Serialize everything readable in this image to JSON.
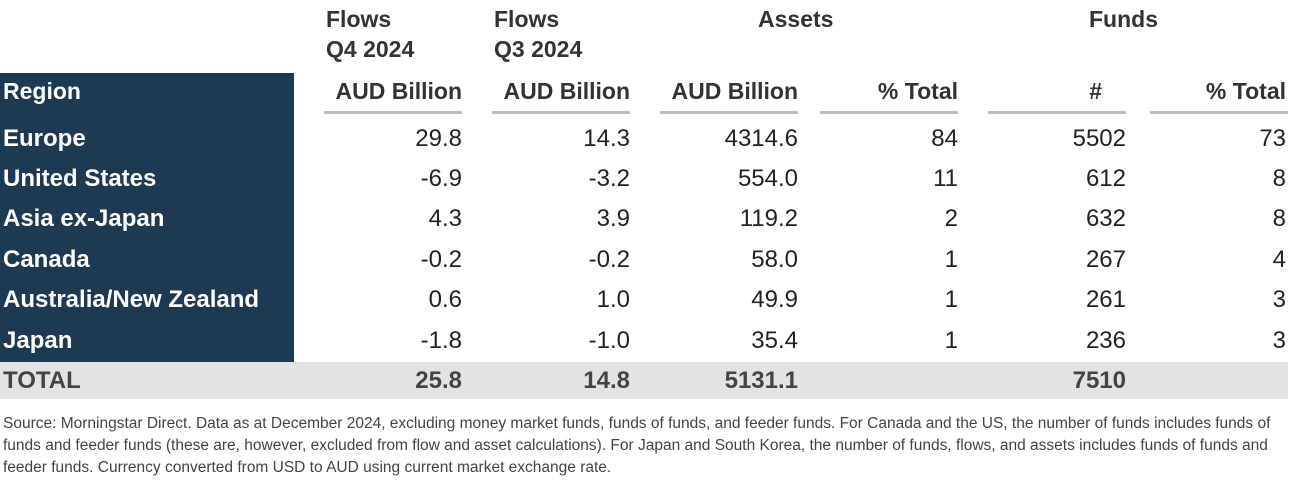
{
  "headers": {
    "flows_q4": [
      "Flows",
      "Q4 2024"
    ],
    "flows_q3": [
      "Flows",
      "Q3 2024"
    ],
    "assets": "Assets",
    "funds": "Funds"
  },
  "subheaders": {
    "region": "Region",
    "flows_q4_unit": "AUD Billion",
    "flows_q3_unit": "AUD Billion",
    "assets_unit": "AUD Billion",
    "assets_pct": "% Total",
    "funds_count": "#",
    "funds_pct": "% Total"
  },
  "rows": [
    {
      "region": "Europe",
      "flows_q4": "29.8",
      "flows_q3": "14.3",
      "assets": "4314.6",
      "assets_pct": "84",
      "funds": "5502",
      "funds_pct": "73"
    },
    {
      "region": "United States",
      "flows_q4": "-6.9",
      "flows_q3": "-3.2",
      "assets": "554.0",
      "assets_pct": "11",
      "funds": "612",
      "funds_pct": "8"
    },
    {
      "region": "Asia ex-Japan",
      "flows_q4": "4.3",
      "flows_q3": "3.9",
      "assets": "119.2",
      "assets_pct": "2",
      "funds": "632",
      "funds_pct": "8"
    },
    {
      "region": "Canada",
      "flows_q4": "-0.2",
      "flows_q3": "-0.2",
      "assets": "58.0",
      "assets_pct": "1",
      "funds": "267",
      "funds_pct": "4"
    },
    {
      "region": "Australia/New Zealand",
      "flows_q4": "0.6",
      "flows_q3": "1.0",
      "assets": "49.9",
      "assets_pct": "1",
      "funds": "261",
      "funds_pct": "3"
    },
    {
      "region": "Japan",
      "flows_q4": "-1.8",
      "flows_q3": "-1.0",
      "assets": "35.4",
      "assets_pct": "1",
      "funds": "236",
      "funds_pct": "3"
    }
  ],
  "total": {
    "label": "TOTAL",
    "flows_q4": "25.8",
    "flows_q3": "14.8",
    "assets": "5131.1",
    "funds": "7510"
  },
  "source": "Source: Morningstar Direct.  Data as at December 2024, excluding money market funds, funds of funds, and feeder funds. For Canada and the US, the number of funds includes funds of funds and feeder funds (these are, however, excluded from flow and asset calculations). For Japan and South Korea, the number of funds, flows, and assets includes funds of funds and feeder funds. Currency converted from USD to AUD using current market exchange rate.",
  "colors": {
    "region_bg": "#1e3a52",
    "total_bg": "#e3e3e3",
    "rule": "#bfbfbf"
  }
}
